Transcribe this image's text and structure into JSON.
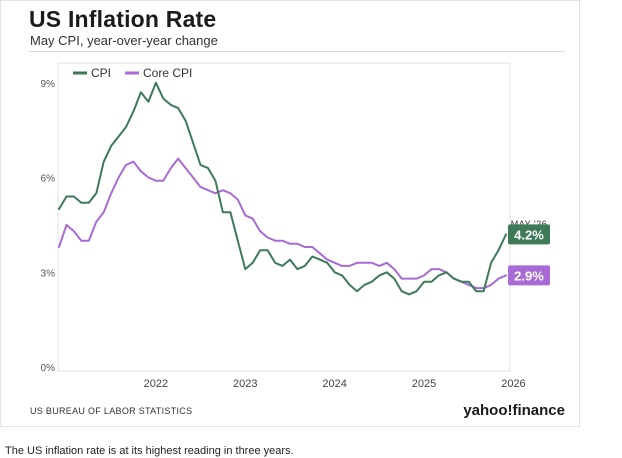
{
  "header": {
    "title": "US Inflation Rate",
    "subtitle": "May CPI, year-over-year change"
  },
  "footer": {
    "source": "US BUREAU OF LABOR STATISTICS",
    "brand": "yahoo!finance"
  },
  "caption": "The US inflation rate is at its highest reading in three years.",
  "chart_data": {
    "type": "line",
    "title": "US Inflation Rate",
    "subtitle": "May CPI, year-over-year change",
    "xlabel": "",
    "ylabel": "",
    "x_ticks": [
      "2022",
      "2023",
      "2024",
      "2025",
      "2026"
    ],
    "y_ticks": [
      "0%",
      "3%",
      "6%",
      "9%"
    ],
    "ylim": [
      0,
      10
    ],
    "grid": false,
    "legend_position": "top-left",
    "annotation": {
      "label": "MAY '26",
      "values": [
        "4.2%",
        "2.9%"
      ]
    },
    "x_dates": [
      "2021-05",
      "2021-06",
      "2021-07",
      "2021-08",
      "2021-09",
      "2021-10",
      "2021-11",
      "2021-12",
      "2022-01",
      "2022-02",
      "2022-03",
      "2022-04",
      "2022-05",
      "2022-06",
      "2022-07",
      "2022-08",
      "2022-09",
      "2022-10",
      "2022-11",
      "2022-12",
      "2023-01",
      "2023-02",
      "2023-03",
      "2023-04",
      "2023-05",
      "2023-06",
      "2023-07",
      "2023-08",
      "2023-09",
      "2023-10",
      "2023-11",
      "2023-12",
      "2024-01",
      "2024-02",
      "2024-03",
      "2024-04",
      "2024-05",
      "2024-06",
      "2024-07",
      "2024-08",
      "2024-09",
      "2024-10",
      "2024-11",
      "2024-12",
      "2025-01",
      "2025-02",
      "2025-03",
      "2025-04",
      "2025-05",
      "2025-06",
      "2025-07",
      "2025-08",
      "2025-09",
      "2025-10",
      "2025-11",
      "2025-12",
      "2026-01",
      "2026-02",
      "2026-03",
      "2026-04",
      "2026-05"
    ],
    "series": [
      {
        "name": "CPI",
        "color": "#3f7a58",
        "values": [
          5.0,
          5.4,
          5.4,
          5.2,
          5.2,
          5.5,
          6.5,
          7.0,
          7.3,
          7.6,
          8.1,
          8.7,
          8.4,
          9.0,
          8.5,
          8.3,
          8.2,
          7.8,
          7.1,
          6.4,
          6.3,
          5.9,
          4.9,
          4.9,
          4.0,
          3.1,
          3.3,
          3.7,
          3.7,
          3.3,
          3.2,
          3.4,
          3.1,
          3.2,
          3.5,
          3.4,
          3.3,
          3.0,
          2.9,
          2.6,
          2.4,
          2.6,
          2.7,
          2.9,
          3.0,
          2.8,
          2.4,
          2.3,
          2.4,
          2.7,
          2.7,
          2.9,
          3.0,
          2.8,
          2.7,
          2.7,
          2.4,
          2.4,
          3.3,
          3.7,
          4.2
        ]
      },
      {
        "name": "Core CPI",
        "color": "#a86bd6",
        "values": [
          3.8,
          4.5,
          4.3,
          4.0,
          4.0,
          4.6,
          4.9,
          5.5,
          6.0,
          6.4,
          6.5,
          6.2,
          6.0,
          5.9,
          5.9,
          6.3,
          6.6,
          6.3,
          6.0,
          5.7,
          5.6,
          5.5,
          5.6,
          5.5,
          5.3,
          4.8,
          4.7,
          4.3,
          4.1,
          4.0,
          4.0,
          3.9,
          3.9,
          3.8,
          3.8,
          3.6,
          3.4,
          3.3,
          3.2,
          3.2,
          3.3,
          3.3,
          3.3,
          3.2,
          3.3,
          3.1,
          2.8,
          2.8,
          2.8,
          2.9,
          3.1,
          3.1,
          3.0,
          2.8,
          2.7,
          2.6,
          2.5,
          2.5,
          2.6,
          2.8,
          2.9
        ]
      }
    ]
  }
}
